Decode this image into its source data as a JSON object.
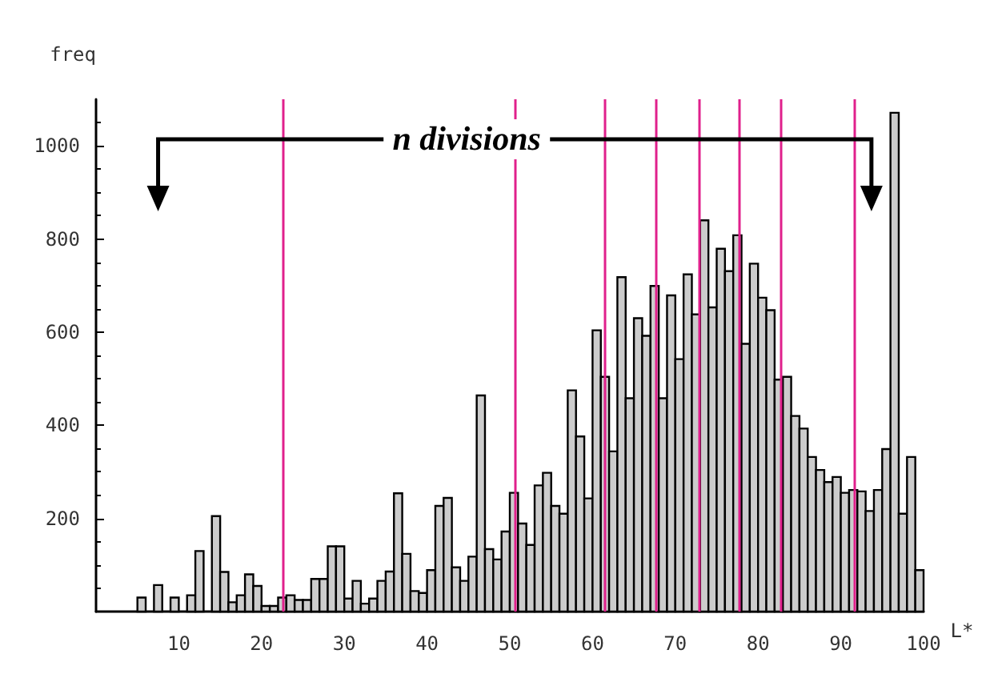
{
  "chart_data": {
    "type": "histogram",
    "xlabel": "L*",
    "ylabel": "freq",
    "annotations": [
      "n divisions"
    ],
    "bins": [
      0,
      1,
      2,
      3,
      4,
      5,
      6,
      7,
      8,
      9,
      10,
      11,
      12,
      13,
      14,
      15,
      16,
      17,
      18,
      19,
      20,
      21,
      22,
      23,
      24,
      25,
      26,
      27,
      28,
      29,
      30,
      31,
      32,
      33,
      34,
      35,
      36,
      37,
      38,
      39,
      40,
      41,
      42,
      43,
      44,
      45,
      46,
      47,
      48,
      49,
      50,
      51,
      52,
      53,
      54,
      55,
      56,
      57,
      58,
      59,
      60,
      61,
      62,
      63,
      64,
      65,
      66,
      67,
      68,
      69,
      70,
      71,
      72,
      73,
      74,
      75,
      76,
      77,
      78,
      79,
      80,
      81,
      82,
      83,
      84,
      85,
      86,
      87,
      88,
      89,
      90,
      91,
      92,
      93,
      94,
      95,
      96,
      97,
      98,
      99,
      100
    ],
    "values": [
      0,
      0,
      0,
      0,
      0,
      30,
      0,
      57,
      0,
      30,
      0,
      35,
      130,
      0,
      205,
      85,
      20,
      35,
      80,
      55,
      12,
      12,
      30,
      35,
      25,
      25,
      70,
      70,
      140,
      140,
      28,
      66,
      17,
      28,
      66,
      86,
      254,
      124,
      44,
      40,
      89,
      227,
      244,
      95,
      66,
      118,
      464,
      134,
      112,
      172,
      255,
      189,
      143,
      271,
      298,
      227,
      210,
      475,
      376,
      243,
      604,
      504,
      344,
      718,
      458,
      630,
      592,
      699,
      458,
      679,
      542,
      724,
      638,
      840,
      653,
      779,
      731,
      808,
      575,
      747,
      674,
      647,
      498,
      504,
      420,
      393,
      332,
      304,
      278,
      289,
      255,
      261,
      258,
      216,
      261,
      349,
      1071,
      210,
      332,
      89
    ],
    "color": "#cccccc",
    "xlim": [
      0,
      100
    ],
    "xticks": [
      10,
      20,
      30,
      40,
      50,
      60,
      70,
      80,
      90,
      100
    ],
    "ylim": [
      0,
      1100
    ],
    "yticks": [
      200,
      400,
      600,
      800,
      1000
    ],
    "grid": false,
    "ref_lines": [
      {
        "axis": "x",
        "value": 22.6,
        "color": "#e0208c"
      },
      {
        "axis": "x",
        "value": 50.7,
        "color": "#e0208c"
      },
      {
        "axis": "x",
        "value": 61.5,
        "color": "#e0208c"
      },
      {
        "axis": "x",
        "value": 67.7,
        "color": "#e0208c"
      },
      {
        "axis": "x",
        "value": 72.9,
        "color": "#e0208c"
      },
      {
        "axis": "x",
        "value": 77.8,
        "color": "#e0208c"
      },
      {
        "axis": "x",
        "value": 82.8,
        "color": "#e0208c"
      },
      {
        "axis": "x",
        "value": 91.7,
        "color": "#e0208c"
      }
    ]
  }
}
